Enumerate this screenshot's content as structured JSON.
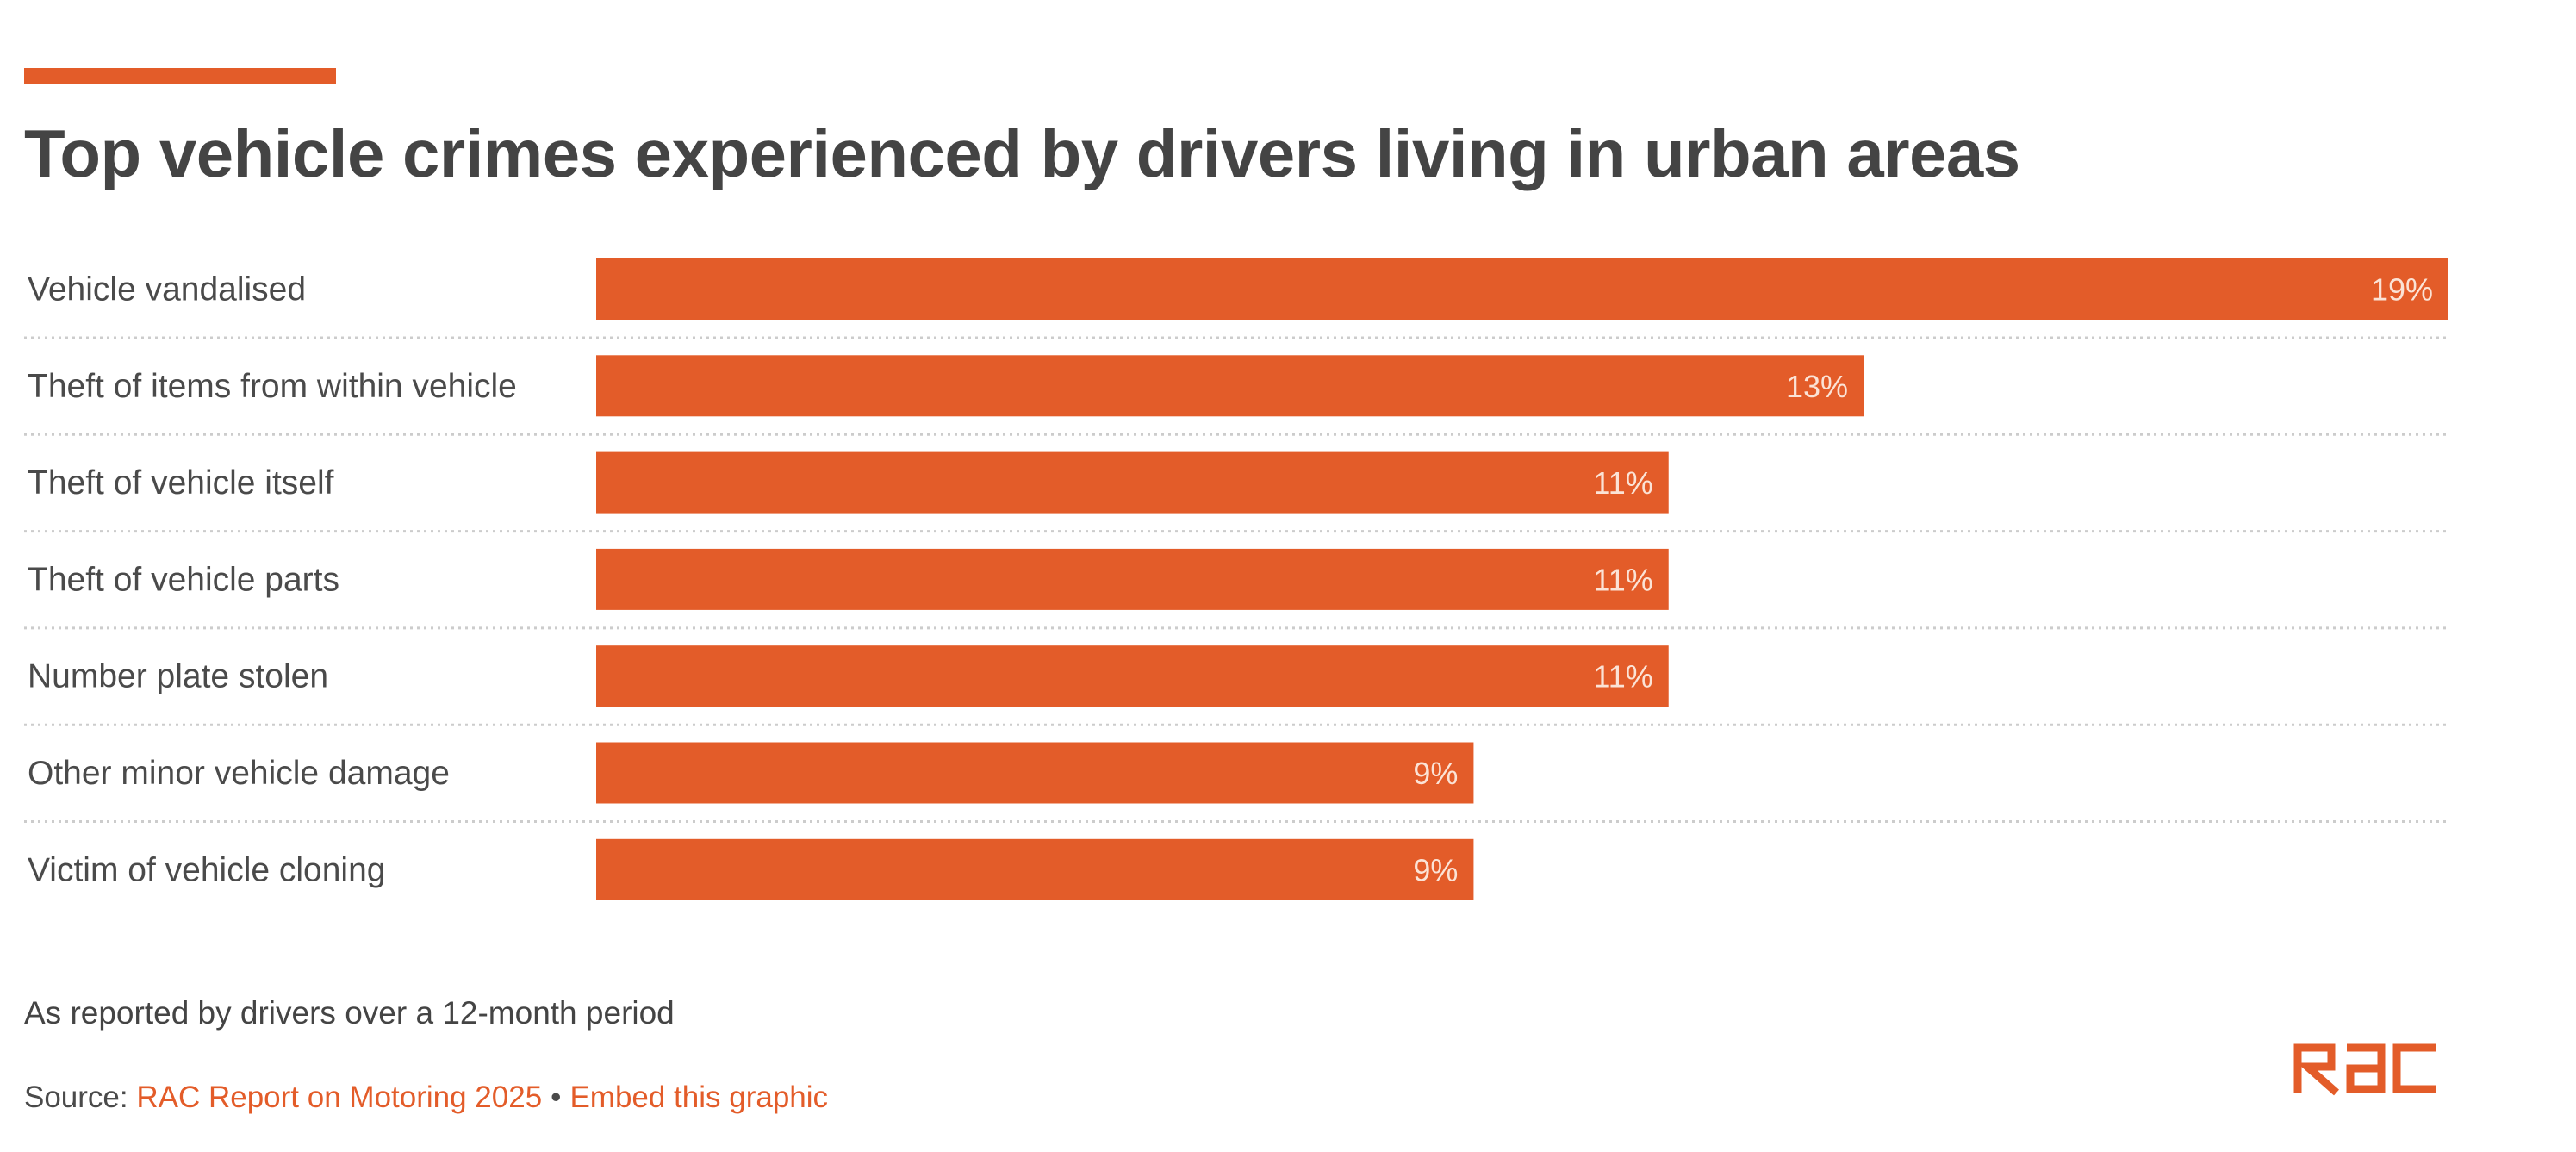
{
  "header": {
    "title": "Top vehicle crimes experienced by drivers living in urban areas"
  },
  "colors": {
    "accent": "#e35c29",
    "bar": "#e35c29",
    "text": "#444444",
    "divider": "#cccccc"
  },
  "chart_data": {
    "type": "bar",
    "orientation": "horizontal",
    "title": "Top vehicle crimes experienced by drivers living in urban areas",
    "xlabel": "",
    "ylabel": "",
    "unit": "%",
    "xlim": [
      0,
      19
    ],
    "grid": false,
    "legend": "none",
    "categories": [
      "Vehicle vandalised",
      "Theft of items from within vehicle",
      "Theft of vehicle itself",
      "Theft of vehicle parts",
      "Number plate stolen",
      "Other minor vehicle damage",
      "Victim of vehicle cloning"
    ],
    "values": [
      19,
      13,
      11,
      11,
      11,
      9,
      9
    ],
    "value_labels": [
      "19%",
      "13%",
      "11%",
      "11%",
      "11%",
      "9%",
      "9%"
    ]
  },
  "footer": {
    "note": "As reported by drivers over a 12-month period",
    "source_prefix": "Source:",
    "source_link": "RAC Report on Motoring 2025",
    "separator": "•",
    "embed_link": "Embed this graphic",
    "logo_text": "RAC"
  }
}
